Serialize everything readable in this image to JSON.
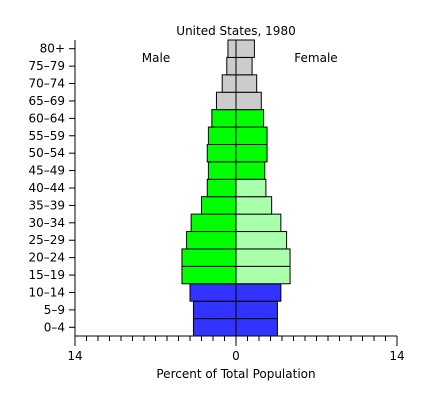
{
  "chart_data": {
    "type": "bar",
    "title": "United States, 1980",
    "xlabel": "Percent of Total Population",
    "ylabel": "",
    "xlim": [
      -14,
      14
    ],
    "xticks": [
      {
        "value": -14,
        "label": "14"
      },
      {
        "value": 0,
        "label": "0"
      },
      {
        "value": 14,
        "label": "14"
      }
    ],
    "minor_tick_step": 1,
    "categories": [
      "0–4",
      "5–9",
      "10–14",
      "15–19",
      "20–24",
      "25–29",
      "30–34",
      "35–39",
      "40–44",
      "45–49",
      "50–54",
      "55–59",
      "60–64",
      "65–69",
      "70–74",
      "75–79",
      "80+"
    ],
    "series": [
      {
        "name": "Male",
        "side": "left",
        "values": [
          3.7,
          3.7,
          4.0,
          4.7,
          4.7,
          4.3,
          3.9,
          3.0,
          2.5,
          2.4,
          2.5,
          2.4,
          2.1,
          1.7,
          1.2,
          0.8,
          0.7
        ]
      },
      {
        "name": "Female",
        "side": "right",
        "values": [
          3.6,
          3.6,
          3.9,
          4.7,
          4.7,
          4.4,
          3.9,
          3.1,
          2.6,
          2.5,
          2.7,
          2.7,
          2.4,
          2.2,
          1.8,
          1.4,
          1.6
        ]
      }
    ],
    "colors": {
      "male": [
        "#3333ff",
        "#3333ff",
        "#3333ff",
        "#00ff00",
        "#00ff00",
        "#00ff00",
        "#00ff00",
        "#00ff00",
        "#00ff00",
        "#00ff00",
        "#00ff00",
        "#00ff00",
        "#00ff00",
        "#cccccc",
        "#cccccc",
        "#cccccc",
        "#cccccc"
      ],
      "female": [
        "#3333ff",
        "#3333ff",
        "#3333ff",
        "#aaffaa",
        "#aaffaa",
        "#aaffaa",
        "#aaffaa",
        "#aaffaa",
        "#aaffaa",
        "#00ff00",
        "#00ff00",
        "#00ff00",
        "#00ff00",
        "#cccccc",
        "#cccccc",
        "#cccccc",
        "#cccccc"
      ]
    },
    "legend": {
      "left": "Male",
      "right": "Female"
    }
  }
}
